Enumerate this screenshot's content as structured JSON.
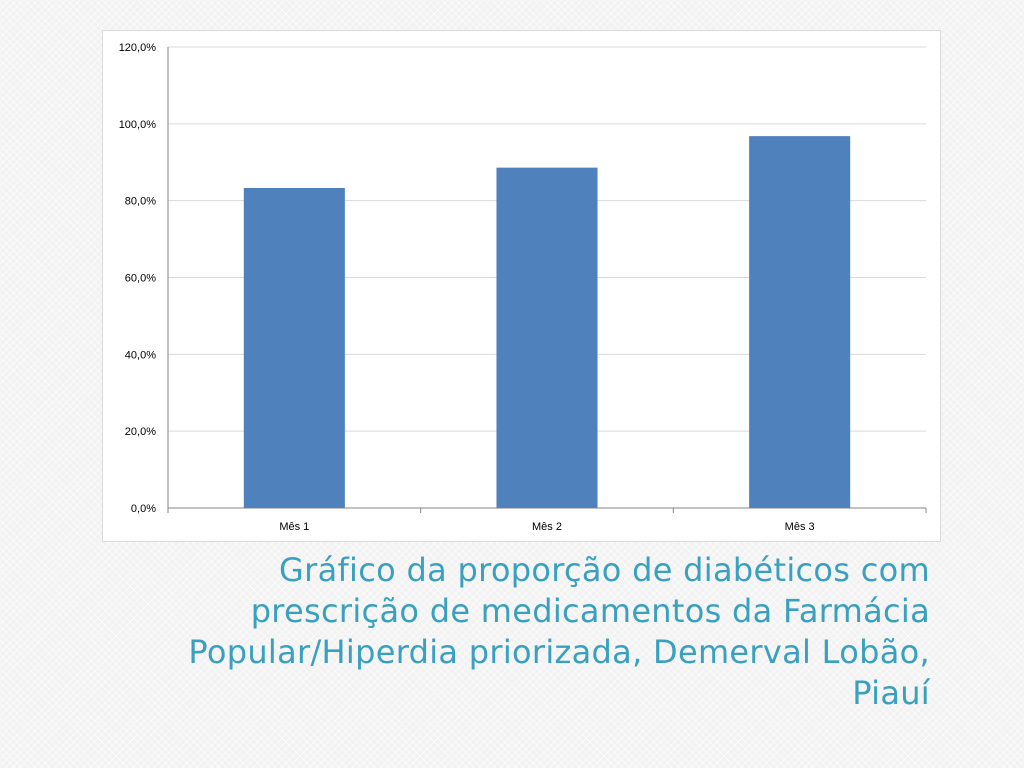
{
  "slide": {
    "caption": "Gráfico da proporção de diabéticos com prescrição de medicamentos da Farmácia Popular/Hiperdia priorizada, Demerval Lobão, Piauí"
  },
  "colors": {
    "bar": "#4f81bd",
    "caption": "#3aa0bf",
    "gridline": "#d9d9d9"
  },
  "chart_data": {
    "type": "bar",
    "categories": [
      "Mês 1",
      "Mês 2",
      "Mês 3"
    ],
    "values": [
      83.3,
      88.6,
      96.8
    ],
    "ylim": [
      0,
      120
    ],
    "yticks": [
      0,
      20,
      40,
      60,
      80,
      100,
      120
    ],
    "ytick_labels": [
      "0,0%",
      "20,0%",
      "40,0%",
      "60,0%",
      "80,0%",
      "100,0%",
      "120,0%"
    ],
    "title": "",
    "xlabel": "",
    "ylabel": "",
    "grid": true,
    "legend": "none"
  }
}
